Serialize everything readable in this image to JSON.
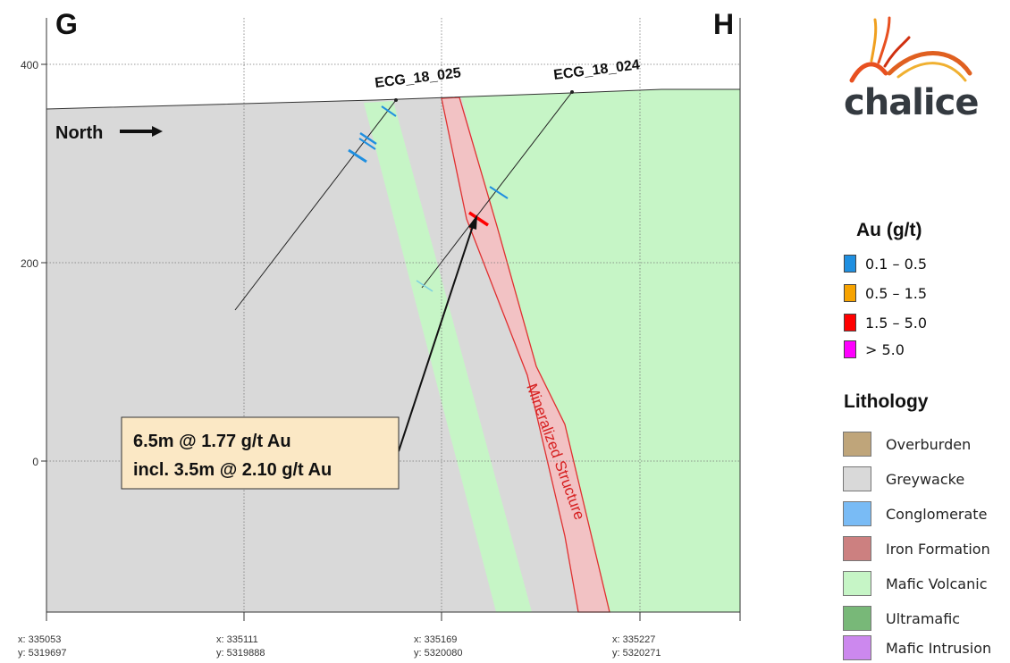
{
  "section": {
    "left_label": "G",
    "right_label": "H",
    "north_label": "North",
    "elevation_ticks": [
      "400",
      "200",
      "0"
    ],
    "easting_ticks": [
      {
        "x": "x: 335053",
        "y": "y: 5319697"
      },
      {
        "x": "x: 335111",
        "y": "y: 5319888"
      },
      {
        "x": "x: 335169",
        "y": "y: 5320080"
      },
      {
        "x": "x: 335227",
        "y": "y: 5320271"
      }
    ],
    "drillholes": [
      {
        "name": "ECG_18_025"
      },
      {
        "name": "ECG_18_024"
      }
    ],
    "structure_label": "Mineralized Structure",
    "callout": {
      "line1": "6.5m @ 1.77 g/t Au",
      "line2": "incl. 3.5m @ 2.10 g/t Au"
    },
    "colors": {
      "greywacke": "#d9d9d9",
      "mafic_volcanic": "#c6f5c6",
      "iron_formation_fill": "#f2c2c4",
      "iron_formation_outline": "#e03030",
      "callout_bg": "#fbe8c5"
    }
  },
  "logo": {
    "text": "chalice"
  },
  "au_legend": {
    "title": "Au (g/t)",
    "items": [
      {
        "label": "0.1 – 0.5",
        "color": "#1f8fe0"
      },
      {
        "label": "0.5 – 1.5",
        "color": "#f7a300"
      },
      {
        "label": "1.5 – 5.0",
        "color": "#ff0000"
      },
      {
        "label": "> 5.0",
        "color": "#ff00ff"
      }
    ]
  },
  "lithology_legend": {
    "title": "Lithology",
    "items": [
      {
        "label": "Overburden",
        "color": "#bfa57a"
      },
      {
        "label": "Greywacke",
        "color": "#d9d9d9"
      },
      {
        "label": "Conglomerate",
        "color": "#79bbf5"
      },
      {
        "label": "Iron Formation",
        "color": "#cc8080"
      },
      {
        "label": "Mafic Volcanic",
        "color": "#c6f5c6"
      },
      {
        "label": "Ultramafic",
        "color": "#78b878"
      },
      {
        "label": "Mafic Intrusion",
        "color": "#cc88ee"
      }
    ]
  }
}
